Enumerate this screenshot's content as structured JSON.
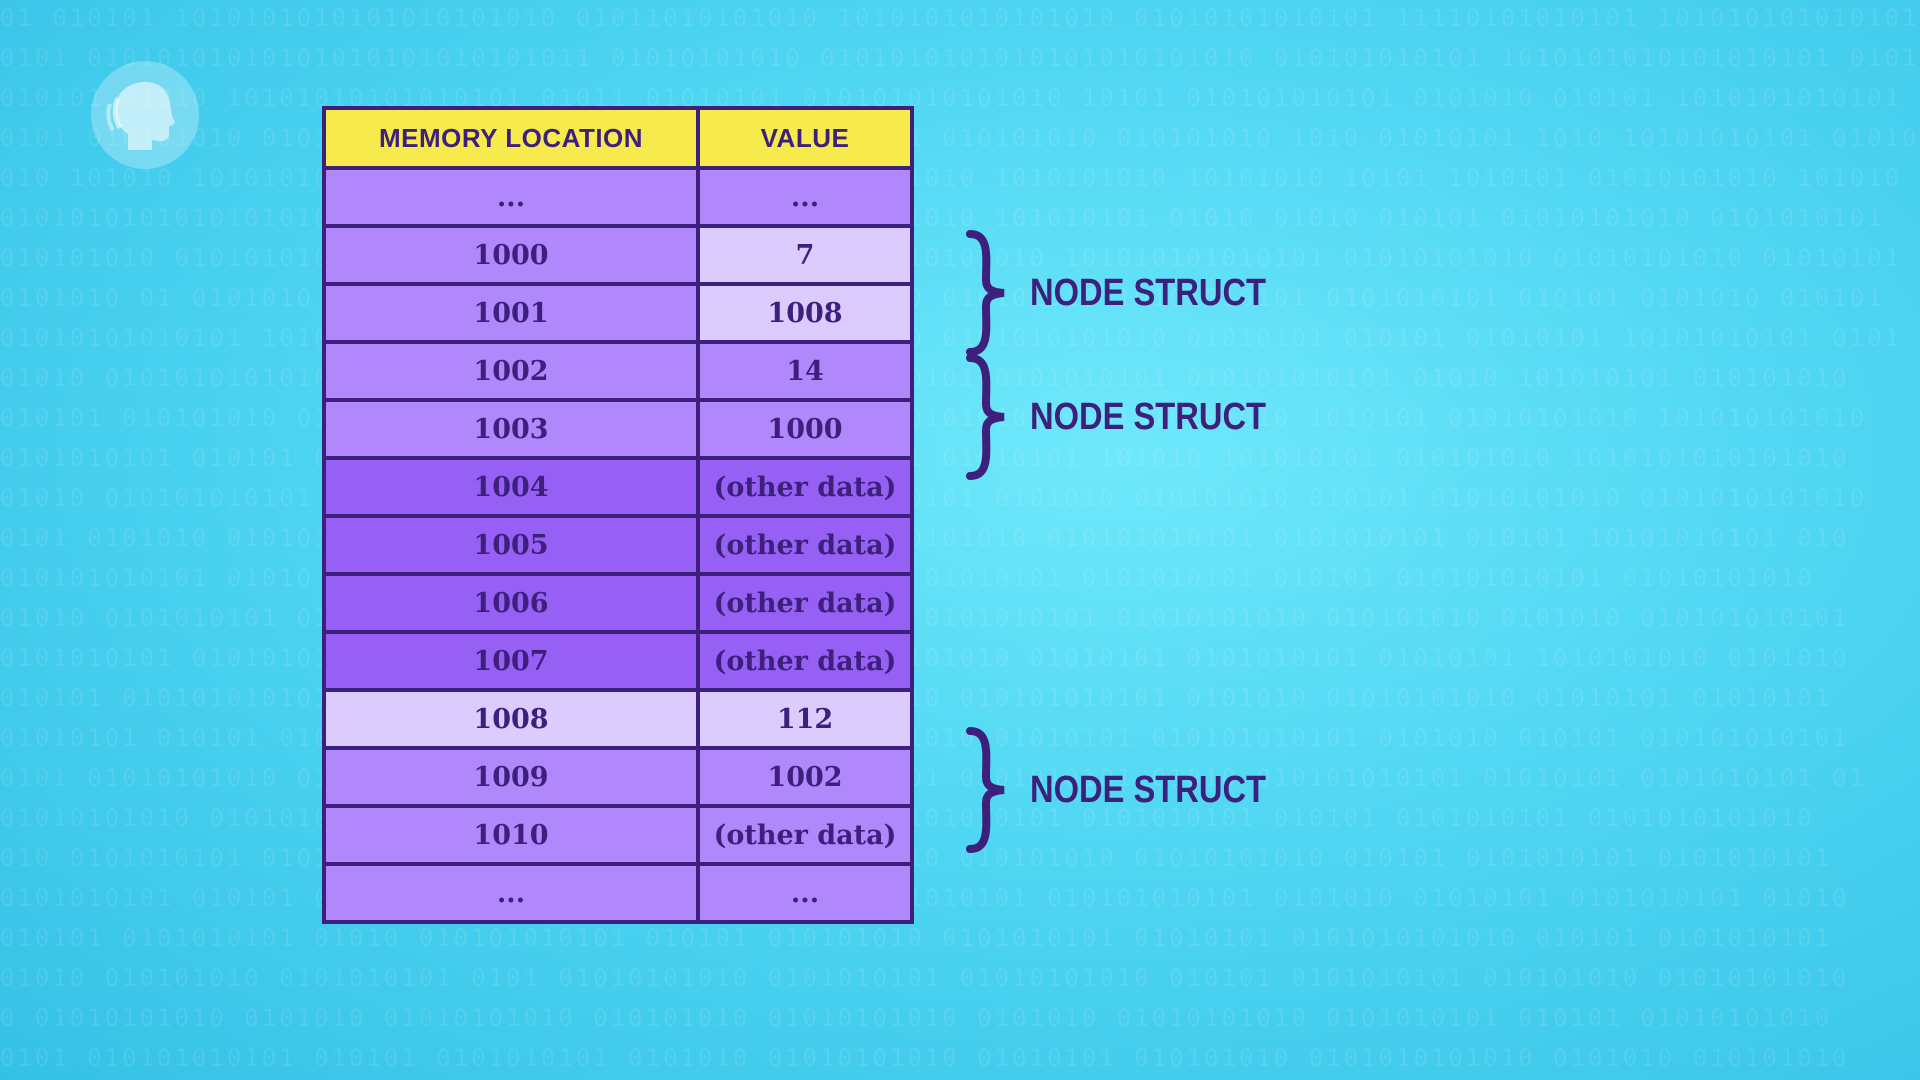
{
  "background": {
    "color": "#4fd6f3",
    "binary_rows": [
      "01 010101 1010101010101010101010 01011010101010 1010101010101010 01010101010101 11110101010101 1010101010101010101",
      "0101 01010101010101010101010101011 01010101010 0101010101010101010101010 010101010101 1010101010101010101 0101",
      "010101 01010 10101010101010101 01011 01010101 010101010101010 10101 010101010101 0101010 010101 1010101010101",
      "0101 010101010 0101 010101010101 010101010 0101010101 010101010 010101010 1010 01010101 1010 10101010101 01010",
      "010 101010 1010101010 01010 1010101 10101010 01010101010 1010101010 10101010 10101 1010101 01010101010 101010",
      "0101010101010101010 01010 0101010101010 01010101 0101010 101010101 01010 01010 010101 01010101010 0101010101",
      "010101010 010101010 10101010 010101010 0101010 0101010101010 101010101010101 01010101010 01010101010 01010101",
      "0101010 01 0101010 101010101010 01010101 01010101 010 010101010 10101010101 0101010101 010101 0101010 010101",
      "01010101010101 1010101010 01010 010101010 01010101010 0101010101010 01010101 010101 01010101 10101010101 0101",
      "01010 0101010101010 01010101010101 010101010101 01010101 0101010101 010101010101 01010 101010101 010101010",
      "010101 010101010 0101010 101010101 010101 0101010 010101010101 01010101010 1010101 01010101010 101010101010",
      "0101010101 010101 0101010 01010 0101010101 0101010101 01010101 101010 101010101 010101010 1010101010101010",
      "01010 010101010101 010101 01010101 01010101 010101010101 0101010 010101010 010101 01010101010 0101010101010",
      "0101 0101010 010101010101 01010 0101010 0101010 01010101010 010101010101 0101010101 010101 10101010101 010",
      "010101010101 01010 0101010101 0101010101 01010101010 01010101 0101010101 010101 010101010101 01010101010",
      "01010 0101010101 0101010 0101010101 010101 010101010 0101010101 01010101010 010101010 0101010 010101010101",
      "0101010101 01010101 010101 01010101010 01010 0101010101010 01010101 0101010101 01010101 1010101010 0101010",
      "010101 0101010101010 0101010 010101 0101010101 0101010 010101010101 0101010 01010101010 01010101 01010101",
      "01010101 010101 0101010101 01010101010 0101010 010101010 01010101 010101010101 0101010 010101 010101010101",
      "0101 01010101010 010101 010101010 01010101010 01010101 0101010101 01010 010101010101 01010101 0101010101 01",
      "01010101010 0101010 0101010101 010101 0101010101 010101010101 0101010101 010101 0101010101 0101010101010",
      "010 0101010101 01010101010 0101010 01010101010 0101010 010101010 01010101010 010101 0101010101 0101010101",
      "0101010101 010101 010101010101 01010 0101010101010 01010101 010101010101 0101010 01010101 0101010101 01010",
      "010101 0101010101 01010 010101010101 010101 010101010 0101010101 01010101 0101010101010 010101 0101010101",
      "01010 010101010 0101010101 0101 01010101010 0101010101 01010101010 010101 0101010101 010101010 01010101010",
      "0 01010101010 0101010 01010101010 010101010 01010101010 0101010 01010101010 0101010101 010101 01010101010",
      "0101 010101010101 010101 0101010101 0101010 01010101010 01010101 010101010 0101010101010 0101010 010101010"
    ]
  },
  "table": {
    "headers": {
      "location": "MEMORY LOCATION",
      "value": "VALUE"
    },
    "rows": [
      {
        "location": "...",
        "value": "...",
        "shade": "light",
        "highlight_location": false,
        "highlight_value": false
      },
      {
        "location": "1000",
        "value": "7",
        "shade": "light",
        "highlight_location": false,
        "highlight_value": true
      },
      {
        "location": "1001",
        "value": "1008",
        "shade": "light",
        "highlight_location": false,
        "highlight_value": true
      },
      {
        "location": "1002",
        "value": "14",
        "shade": "light",
        "highlight_location": false,
        "highlight_value": false
      },
      {
        "location": "1003",
        "value": "1000",
        "shade": "light",
        "highlight_location": false,
        "highlight_value": false
      },
      {
        "location": "1004",
        "value": "(other data)",
        "shade": "dark",
        "highlight_location": false,
        "highlight_value": false
      },
      {
        "location": "1005",
        "value": "(other data)",
        "shade": "dark",
        "highlight_location": false,
        "highlight_value": false
      },
      {
        "location": "1006",
        "value": "(other data)",
        "shade": "dark",
        "highlight_location": false,
        "highlight_value": false
      },
      {
        "location": "1007",
        "value": "(other data)",
        "shade": "dark",
        "highlight_location": false,
        "highlight_value": false
      },
      {
        "location": "1008",
        "value": "112",
        "shade": "light",
        "highlight_location": true,
        "highlight_value": true
      },
      {
        "location": "1009",
        "value": "1002",
        "shade": "light",
        "highlight_location": false,
        "highlight_value": false
      },
      {
        "location": "1010",
        "value": "(other data)",
        "shade": "light",
        "highlight_location": false,
        "highlight_value": false
      },
      {
        "location": "...",
        "value": "...",
        "shade": "light",
        "highlight_location": false,
        "highlight_value": false
      }
    ]
  },
  "annotations": [
    {
      "label": "NODE STRUCT",
      "spans_rows": [
        "1000",
        "1001"
      ]
    },
    {
      "label": "NODE STRUCT",
      "spans_rows": [
        "1002",
        "1003"
      ]
    },
    {
      "label": "NODE STRUCT",
      "spans_rows": [
        "1008",
        "1009"
      ]
    }
  ],
  "logo": {
    "icon": "pbs-head-icon"
  },
  "colors": {
    "header_yellow": "#f7ea4c",
    "border_purple": "#3d1f7c",
    "row_light_purple": "#b088fb",
    "row_dark_purple": "#9760f5",
    "highlight_lavender": "#dccbfd",
    "text_purple": "#3d1f7c"
  }
}
